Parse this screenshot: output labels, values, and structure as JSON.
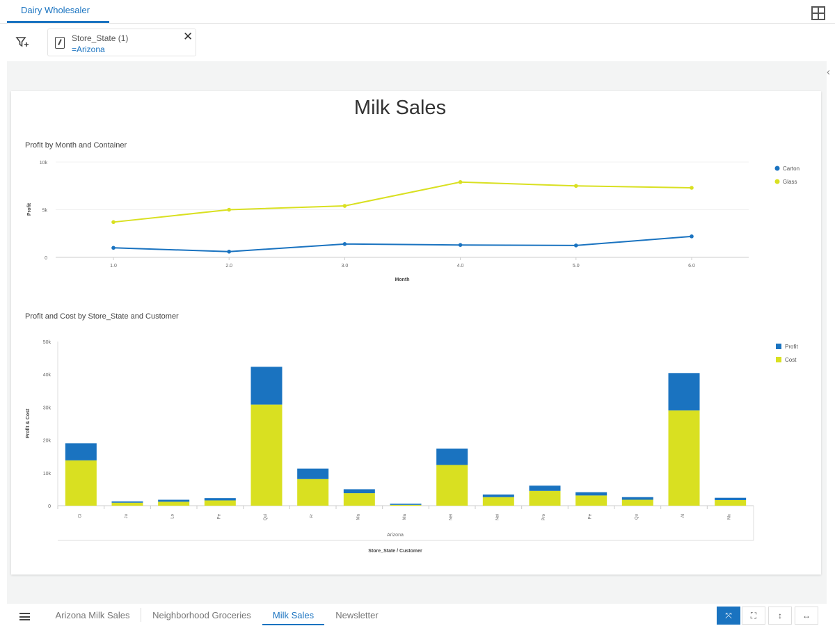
{
  "app": {
    "top_tab": "Dairy Wholesaler",
    "layout_icon": "grid-layout-icon"
  },
  "filters": [
    {
      "title": "Store_State (1)",
      "value": "=Arizona"
    }
  ],
  "page": {
    "title": "Milk Sales"
  },
  "line_chart_title": "Profit by Month and Container",
  "bar_chart_title": "Profit and Cost by Store_State and Customer",
  "chart_data": [
    {
      "type": "line",
      "title": "Profit by Month and Container",
      "xlabel": "Month",
      "ylabel": "Profit",
      "x": [
        1,
        2,
        3,
        4,
        5,
        6
      ],
      "x_tick_labels": [
        "1.0",
        "2.0",
        "3.0",
        "4.0",
        "5.0",
        "6.0"
      ],
      "y_tick_labels": [
        "0",
        "5k",
        "10k"
      ],
      "ylim": [
        0,
        10000
      ],
      "legend_position": "top-right",
      "series": [
        {
          "name": "Carton",
          "color": "#1a73c0",
          "values": [
            1000,
            600,
            1400,
            1300,
            1250,
            2200
          ]
        },
        {
          "name": "Glass",
          "color": "#d9e021",
          "values": [
            3700,
            5000,
            5400,
            7900,
            7500,
            7300
          ]
        }
      ]
    },
    {
      "type": "bar",
      "stacked": true,
      "title": "Profit and Cost by Store_State and Customer",
      "xlabel": "Store_State / Customer",
      "group_label": "Arizona",
      "ylabel": "Profit & Cost",
      "y_tick_labels": [
        "0",
        "10k",
        "20k",
        "30k",
        "40k",
        "50k"
      ],
      "ylim": [
        0,
        50000
      ],
      "legend_position": "top-right",
      "categories": [
        "Ci",
        "Ju",
        "Lo",
        "Pe",
        "Qui",
        "Fr",
        "Ma",
        "Ma",
        "Nei",
        "Nei",
        "Pro",
        "Pe",
        "Qu",
        "Al",
        "Mc"
      ],
      "series": [
        {
          "name": "Cost",
          "color": "#d9e021",
          "values": [
            13800,
            900,
            1200,
            1600,
            30800,
            8100,
            3800,
            250,
            12400,
            2600,
            4500,
            3100,
            1800,
            29000,
            1700
          ]
        },
        {
          "name": "Profit",
          "color": "#1a73c0",
          "values": [
            5200,
            400,
            600,
            700,
            11500,
            3200,
            1200,
            350,
            5000,
            800,
            1600,
            1000,
            800,
            11400,
            700
          ]
        }
      ]
    }
  ],
  "bottom": {
    "menu_icon": "hamburger-menu-icon",
    "tabs": [
      "Arizona Milk Sales",
      "Neighborhood Groceries",
      "Milk Sales",
      "Newsletter"
    ],
    "view_buttons": [
      "fit-to-page-icon",
      "full-screen-icon",
      "fit-height-icon",
      "fit-width-icon"
    ]
  }
}
